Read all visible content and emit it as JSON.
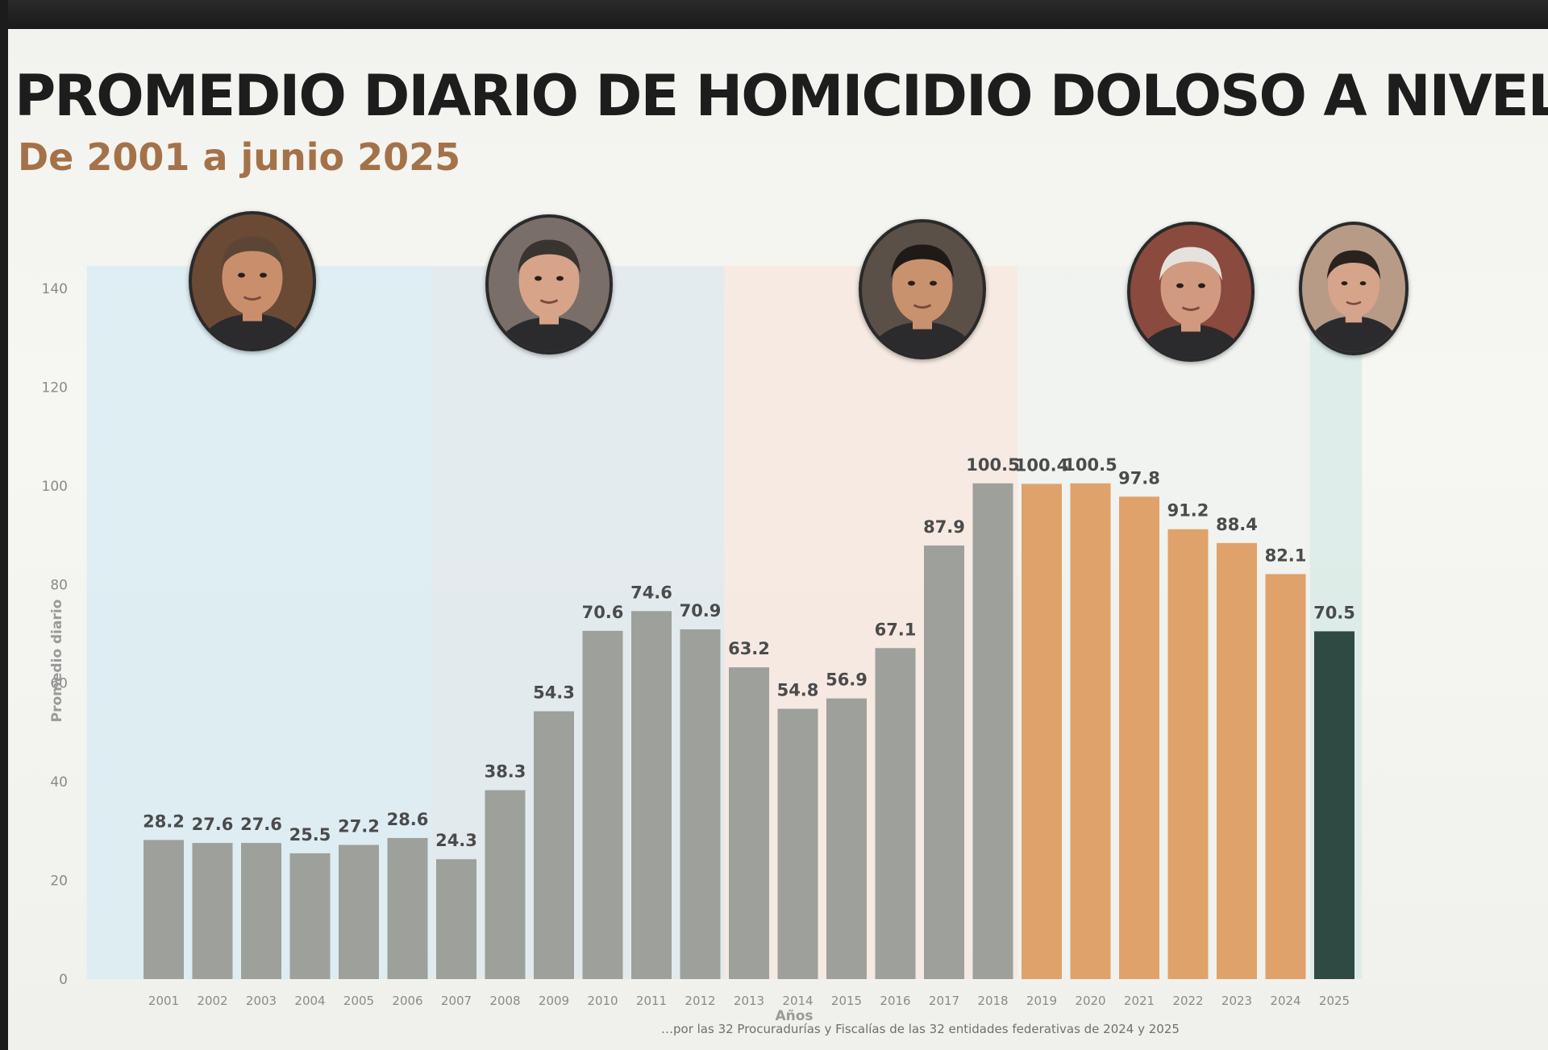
{
  "page": {
    "title": "PROMEDIO DIARIO DE HOMICIDIO DOLOSO A NIVEL NACIONA",
    "subtitle": "De 2001 a junio 2025",
    "source_note": "…por las 32 Procuradurías y Fiscalías de las 32 entidades federativas de 2024 y 2025"
  },
  "colors": {
    "bar_gray": "#9ea09c",
    "bar_orange": "#dfa26b",
    "bar_dark": "#2e4a43",
    "label": "#4b4b4b",
    "axis_text": "#8a8a8a",
    "band_fox": "#d6ebf2",
    "band_calderon": "#dde7ec",
    "band_pena": "#f6e5dc",
    "band_amlo": "#eef1ee",
    "band_sheinbaum": "#d5e9e6"
  },
  "portraits": [
    {
      "name": "portrait-icon-2001-2006",
      "icon": "person-portrait-icon",
      "skin": "#c98f6d",
      "hair": "#5b4636",
      "bg": "#6b4a35"
    },
    {
      "name": "portrait-icon-2007-2012",
      "icon": "person-portrait-icon",
      "skin": "#d7a48a",
      "hair": "#3a3431",
      "bg": "#7a6f68"
    },
    {
      "name": "portrait-icon-2013-2018",
      "icon": "person-portrait-icon",
      "skin": "#c8926f",
      "hair": "#1f1a17",
      "bg": "#5a5048"
    },
    {
      "name": "portrait-icon-2019-2024",
      "icon": "person-portrait-icon",
      "skin": "#d19a80",
      "hair": "#e5e2dd",
      "bg": "#8b4a3e"
    },
    {
      "name": "portrait-icon-2025",
      "icon": "person-portrait-icon",
      "skin": "#d6a48a",
      "hair": "#2a221d",
      "bg": "#b79b86"
    }
  ],
  "chart_data": {
    "type": "bar",
    "title": "PROMEDIO DIARIO DE HOMICIDIO DOLOSO A NIVEL NACIONA",
    "subtitle": "De 2001 a junio 2025",
    "xlabel": "Años",
    "ylabel": "Promedio diario",
    "ylim": [
      0,
      140
    ],
    "yticks": [
      0,
      20,
      40,
      60,
      80,
      100,
      120,
      140
    ],
    "grid": false,
    "legend": "none",
    "categories": [
      "2001",
      "2002",
      "2003",
      "2004",
      "2005",
      "2006",
      "2007",
      "2008",
      "2009",
      "2010",
      "2011",
      "2012",
      "2013",
      "2014",
      "2015",
      "2016",
      "2017",
      "2018",
      "2019",
      "2020",
      "2021",
      "2022",
      "2023",
      "2024",
      "2025"
    ],
    "values": [
      28.2,
      27.6,
      27.6,
      25.5,
      27.2,
      28.6,
      24.3,
      38.3,
      54.3,
      70.6,
      74.6,
      70.9,
      63.2,
      54.8,
      56.9,
      67.1,
      87.9,
      100.5,
      100.4,
      100.5,
      97.8,
      91.2,
      88.4,
      82.1,
      70.5
    ],
    "value_labels": [
      "28.2",
      "27.6",
      "27.6",
      "25.5",
      "27.2",
      "28.6",
      "24.3",
      "38.3",
      "54.3",
      "70.6",
      "74.6",
      "70.9",
      "63.2",
      "54.8",
      "56.9",
      "67.1",
      "87.9",
      "100.5",
      "100.4",
      "100.5",
      "97.8",
      "91.2",
      "88.4",
      "82.1",
      "70.5"
    ],
    "bar_colors": [
      "#9ea09c",
      "#9ea09c",
      "#9ea09c",
      "#9ea09c",
      "#9ea09c",
      "#9ea09c",
      "#9ea09c",
      "#9ea09c",
      "#9ea09c",
      "#9ea09c",
      "#9ea09c",
      "#9ea09c",
      "#9ea09c",
      "#9ea09c",
      "#9ea09c",
      "#9ea09c",
      "#9ea09c",
      "#9ea09c",
      "#dfa26b",
      "#dfa26b",
      "#dfa26b",
      "#dfa26b",
      "#dfa26b",
      "#dfa26b",
      "#2e4a43"
    ],
    "periods": [
      {
        "from": "2001",
        "to": "2006",
        "band_color": "#d6ebf2"
      },
      {
        "from": "2007",
        "to": "2012",
        "band_color": "#dde7ec"
      },
      {
        "from": "2013",
        "to": "2018",
        "band_color": "#f6e5dc"
      },
      {
        "from": "2019",
        "to": "2024",
        "band_color": "#eef1ee"
      },
      {
        "from": "2025",
        "to": "2025",
        "band_color": "#d5e9e6"
      }
    ]
  }
}
